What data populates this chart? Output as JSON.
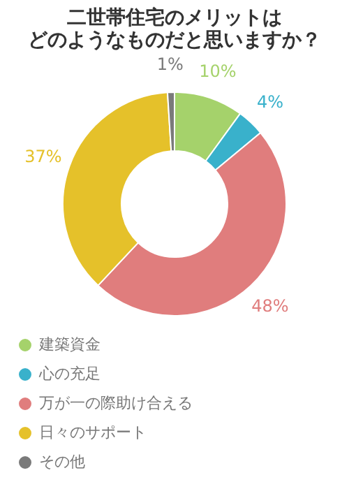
{
  "chart_data": {
    "type": "donut",
    "title": [
      "二世帯住宅のメリットは",
      "どのようなものだと思いますか？"
    ],
    "categories": [
      "建築資金",
      "心の充足",
      "万が一の際助け合える",
      "日々のサポート",
      "その他"
    ],
    "values": [
      10,
      4,
      48,
      37,
      1
    ],
    "colors": [
      "#a5d26b",
      "#39b1cb",
      "#e07d7d",
      "#e5c12a",
      "#7a7a7a"
    ],
    "value_labels": [
      "10%",
      "4%",
      "48%",
      "37%",
      "1%"
    ],
    "legend": "bottom"
  }
}
